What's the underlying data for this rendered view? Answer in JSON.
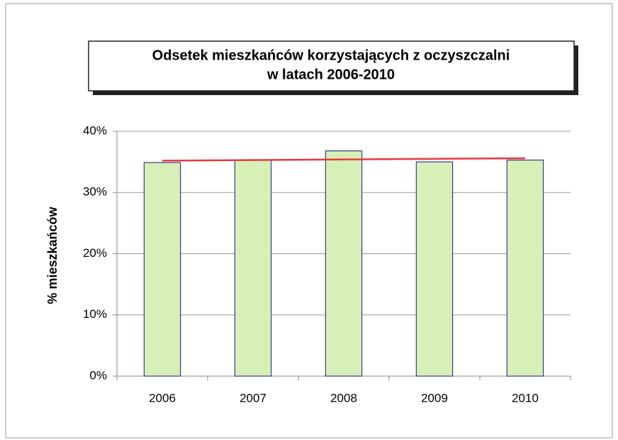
{
  "chart_data": {
    "type": "bar",
    "title": "Odsetek mieszkańców korzystających  z oczyszczalni",
    "subtitle": "w latach 2006-2010",
    "y_label": "% mieszkańców",
    "categories": [
      "2006",
      "2007",
      "2008",
      "2009",
      "2010"
    ],
    "values": [
      34.9,
      35.3,
      36.8,
      35.0,
      35.3
    ],
    "color": "#d6f0b8",
    "trendline": {
      "values": [
        35.2,
        35.6
      ],
      "color": "#e8383d"
    },
    "ylim": [
      0,
      40
    ],
    "yticks": [
      {
        "value": 0,
        "label": "0%"
      },
      {
        "value": 10,
        "label": "10%"
      },
      {
        "value": 20,
        "label": "20%"
      },
      {
        "value": 30,
        "label": "30%"
      },
      {
        "value": 40,
        "label": "40%"
      }
    ],
    "grid": true
  }
}
